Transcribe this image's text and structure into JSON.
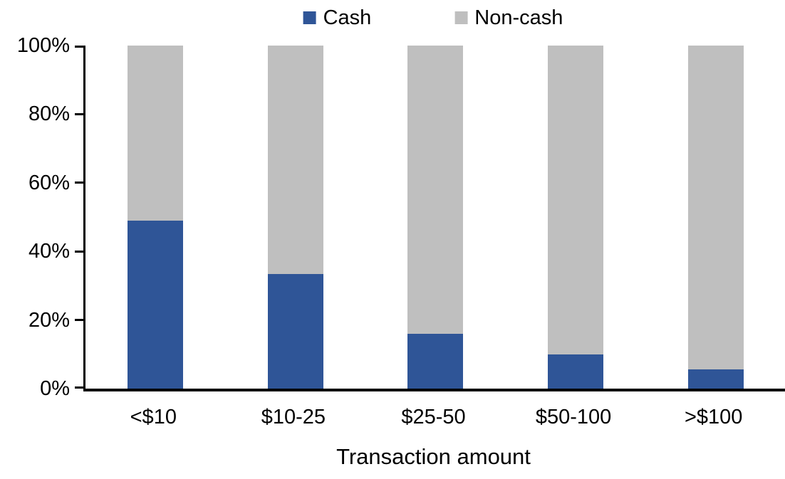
{
  "chart_data": {
    "type": "bar",
    "stacked": true,
    "unit": "percent",
    "title": "",
    "xlabel": "Transaction amount",
    "ylabel": "",
    "ylim": [
      0,
      100
    ],
    "yticks": [
      "0%",
      "20%",
      "40%",
      "60%",
      "80%",
      "100%"
    ],
    "grid": false,
    "legend_position": "top",
    "categories": [
      "<$10",
      "$10-25",
      "$25-50",
      "$50-100",
      ">$100"
    ],
    "series": [
      {
        "name": "Cash",
        "color": "#2F5597",
        "values": [
          49,
          33.5,
          16,
          10,
          5.5
        ]
      },
      {
        "name": "Non-cash",
        "color": "#BFBFBF",
        "values": [
          51,
          66.5,
          84,
          90,
          94.5
        ]
      }
    ]
  },
  "colors": {
    "cash": "#2F5597",
    "non_cash": "#BFBFBF",
    "axis": "#000000"
  }
}
